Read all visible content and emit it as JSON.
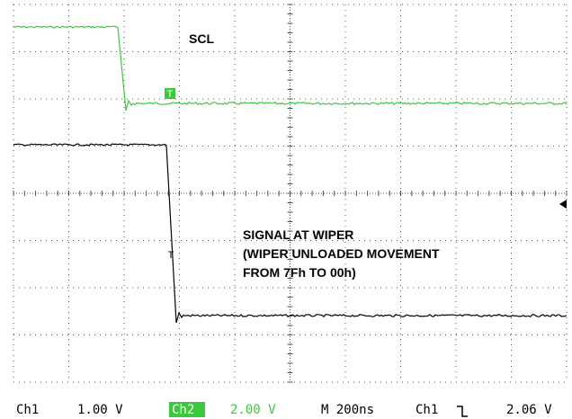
{
  "labels": {
    "scl": "SCL",
    "wiper": [
      "SIGNAL AT WIPER",
      "(WIPER UNLOADED MOVEMENT",
      "FROM 7Fh TO 00h)"
    ],
    "trigger": "T"
  },
  "status_bar": {
    "ch1": "Ch1",
    "ch1_scale": "1.00 V",
    "ch2": "Ch2",
    "ch2_scale": "2.00 V",
    "timebase": "M 200ns",
    "trigger_source": "Ch1",
    "trigger_level": "2.06 V"
  }
}
